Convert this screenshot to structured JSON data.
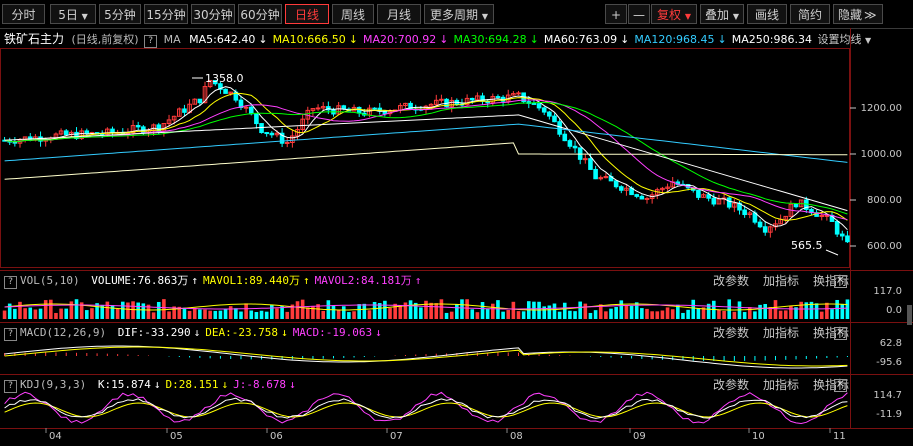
{
  "toolbar": {
    "periods": [
      "分时",
      "5日",
      "5分钟",
      "15分钟",
      "30分钟",
      "60分钟",
      "日线",
      "周线",
      "月线",
      "更多周期"
    ],
    "active_period": "日线",
    "right_buttons": [
      "+",
      "—",
      "复权",
      "叠加",
      "画线",
      "简约",
      "隐藏"
    ],
    "more_arrow": "≫"
  },
  "price_panel": {
    "title": "铁矿石主力",
    "subtitle": "(日线,前复权)",
    "ma_prefix": "MA",
    "ma_items": [
      {
        "label": "MA5:642.40",
        "arrow": "↓",
        "color": "#ffffff"
      },
      {
        "label": "MA10:666.50",
        "arrow": "↓",
        "color": "#ffff00"
      },
      {
        "label": "MA20:700.92",
        "arrow": "↓",
        "color": "#ff40ff"
      },
      {
        "label": "MA30:694.28",
        "arrow": "↓",
        "color": "#00ff00"
      },
      {
        "label": "MA60:763.09",
        "arrow": "↓",
        "color": "#ffffff"
      },
      {
        "label": "MA120:968.45",
        "arrow": "↓",
        "color": "#33ccff"
      },
      {
        "label": "MA250:986.34",
        "arrow": "",
        "color": "#ffffff"
      }
    ],
    "settings_label": "设置均线",
    "high_marker": "1358.0",
    "low_marker": "565.5",
    "y_ticks": [
      "1200.00",
      "1000.00",
      "800.00",
      "600.00"
    ]
  },
  "vol_panel": {
    "name": "VOL(5,10)",
    "items": [
      {
        "label": "VOLUME:76.863万",
        "arrow": "↑",
        "color": "#ffffff"
      },
      {
        "label": "MAVOL1:89.440万",
        "arrow": "↑",
        "color": "#ffff00"
      },
      {
        "label": "MAVOL2:84.181万",
        "arrow": "↑",
        "color": "#ff40ff"
      }
    ],
    "y_ticks": [
      "117.0",
      "0.0"
    ]
  },
  "macd_panel": {
    "name": "MACD(12,26,9)",
    "items": [
      {
        "label": "DIF:-33.290",
        "arrow": "↓",
        "color": "#ffffff"
      },
      {
        "label": "DEA:-23.758",
        "arrow": "↓",
        "color": "#ffff00"
      },
      {
        "label": "MACD:-19.063",
        "arrow": "↓",
        "color": "#ff40ff"
      }
    ],
    "y_ticks": [
      "62.8",
      "-95.6"
    ]
  },
  "kdj_panel": {
    "name": "KDJ(9,3,3)",
    "items": [
      {
        "label": "K:15.874",
        "arrow": "↓",
        "color": "#ffffff"
      },
      {
        "label": "D:28.151",
        "arrow": "↓",
        "color": "#ffff00"
      },
      {
        "label": "J:-8.678",
        "arrow": "↓",
        "color": "#ff40ff"
      }
    ],
    "y_ticks": [
      "114.7",
      "-11.9"
    ]
  },
  "panel_actions": [
    "改参数",
    "加指标",
    "换指标"
  ],
  "close_glyph": "✕",
  "question_glyph": "?",
  "x_labels": [
    "04",
    "05",
    "06",
    "07",
    "08",
    "09",
    "10",
    "11"
  ],
  "colors": {
    "up": "#ff3b3b",
    "down": "#00ffff",
    "accent": "#ff3b3b",
    "grid": "#7a1010"
  }
}
